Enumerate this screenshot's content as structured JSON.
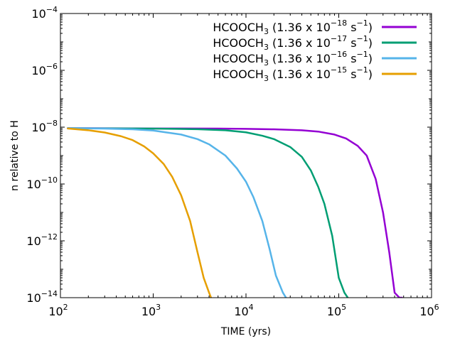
{
  "chart_data": {
    "type": "line",
    "title": "",
    "xlabel": "TIME (yrs)",
    "ylabel": "n relative to H",
    "xscale": "log",
    "yscale": "log",
    "xlim": [
      100,
      1000000
    ],
    "ylim": [
      1e-14,
      0.0001
    ],
    "x_ticks": [
      {
        "value": 100,
        "base": "10",
        "exp": "2"
      },
      {
        "value": 1000,
        "base": "10",
        "exp": "3"
      },
      {
        "value": 10000,
        "base": "10",
        "exp": "4"
      },
      {
        "value": 100000,
        "base": "10",
        "exp": "5"
      },
      {
        "value": 1000000,
        "base": "10",
        "exp": "6"
      }
    ],
    "y_ticks": [
      {
        "value": 0.0001,
        "base": "10",
        "exp": "−4"
      },
      {
        "value": 1e-06,
        "base": "10",
        "exp": "−6"
      },
      {
        "value": 1e-08,
        "base": "10",
        "exp": "−8"
      },
      {
        "value": 1e-10,
        "base": "10",
        "exp": "−10"
      },
      {
        "value": 1e-12,
        "base": "10",
        "exp": "−12"
      },
      {
        "value": 1e-14,
        "base": "10",
        "exp": "−14"
      }
    ],
    "grid": false,
    "legend_position": "top-right",
    "series": [
      {
        "name": "HCOOCH3 (1.36 x 10−18 s−1)",
        "legend": {
          "species": "HCOOCH",
          "sub": "3",
          "pre": " (1.36 x 10",
          "exp": "−18",
          "mid": " s",
          "unit_exp": "−1",
          "post": ")"
        },
        "color": "#9400d3",
        "x": [
          120,
          1000,
          5000,
          10000,
          20000,
          40000,
          60000,
          90000,
          120000,
          160000,
          200000,
          250000,
          300000,
          350000,
          400000,
          450000,
          480000
        ],
        "y": [
          9.2e-09,
          9e-09,
          8.9e-09,
          8.7e-09,
          8.4e-09,
          7.8e-09,
          7e-09,
          5.5e-09,
          4e-09,
          2.2e-09,
          1e-09,
          1.5e-10,
          1e-11,
          4e-13,
          1.5e-14,
          1e-14,
          1e-14
        ]
      },
      {
        "name": "HCOOCH3 (1.36 x 10−17 s−1)",
        "legend": {
          "species": "HCOOCH",
          "sub": "3",
          "pre": " (1.36 x 10",
          "exp": "−17",
          "mid": " s",
          "unit_exp": "−1",
          "post": ")"
        },
        "color": "#009e73",
        "x": [
          120,
          1000,
          3000,
          6000,
          10000,
          15000,
          20000,
          30000,
          40000,
          50000,
          60000,
          70000,
          85000,
          100000,
          115000,
          125000
        ],
        "y": [
          9.2e-09,
          8.9e-09,
          8.5e-09,
          7.8e-09,
          6.6e-09,
          5e-09,
          3.8e-09,
          2e-09,
          9e-10,
          3e-10,
          8e-11,
          2e-11,
          1.5e-12,
          5e-14,
          1.5e-14,
          1e-14
        ]
      },
      {
        "name": "HCOOCH3 (1.36 x 10−16 s−1)",
        "legend": {
          "species": "HCOOCH",
          "sub": "3",
          "pre": " (1.36 x 10",
          "exp": "−16",
          "mid": " s",
          "unit_exp": "−1",
          "post": ")"
        },
        "color": "#56b4e9",
        "x": [
          120,
          300,
          600,
          1000,
          2000,
          3000,
          4000,
          6000,
          8000,
          10000,
          12000,
          15000,
          18000,
          21000,
          25000,
          27000
        ],
        "y": [
          9.2e-09,
          8.9e-09,
          8.4e-09,
          7.6e-09,
          5.5e-09,
          3.8e-09,
          2.5e-09,
          1e-09,
          3.5e-10,
          1.2e-10,
          3.5e-11,
          5e-12,
          5e-13,
          6e-14,
          1.5e-14,
          1e-14
        ]
      },
      {
        "name": "HCOOCH3 (1.36 x 10−15 s−1)",
        "legend": {
          "species": "HCOOCH",
          "sub": "3",
          "pre": " (1.36 x 10",
          "exp": "−15",
          "mid": " s",
          "unit_exp": "−1",
          "post": ")"
        },
        "color": "#e69f00",
        "x": [
          120,
          200,
          300,
          450,
          600,
          800,
          1000,
          1300,
          1600,
          2000,
          2500,
          3000,
          3500,
          4000,
          4200
        ],
        "y": [
          9e-09,
          7.8e-09,
          6.5e-09,
          4.8e-09,
          3.5e-09,
          2.1e-09,
          1.2e-09,
          5e-10,
          1.8e-10,
          4e-11,
          5e-12,
          4e-13,
          5e-14,
          1.5e-14,
          1e-14
        ]
      }
    ]
  }
}
